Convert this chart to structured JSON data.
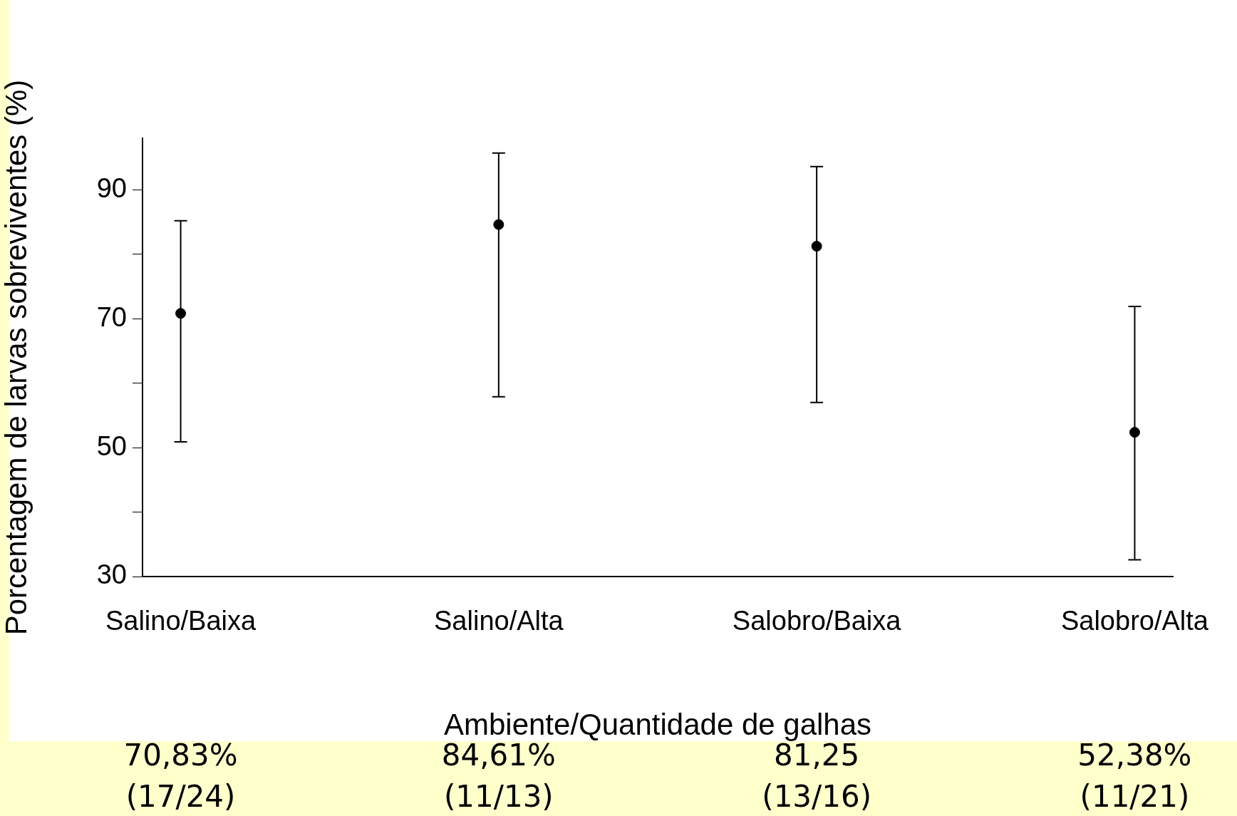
{
  "chart_data": {
    "type": "scatter",
    "xlabel": "Ambiente/Quantidade de galhas",
    "ylabel": "Porcentagem de larvas sobreviventes (%)",
    "categories": [
      "Salino/Baixa",
      "Salino/Alta",
      "Salobro/Baixa",
      "Salobro/Alta"
    ],
    "values": [
      70.83,
      84.61,
      81.25,
      52.38
    ],
    "errors": [
      [
        50.9,
        85.2
      ],
      [
        57.9,
        95.7
      ],
      [
        57.0,
        93.6
      ],
      [
        32.6,
        71.9
      ]
    ],
    "value_labels": [
      "70,83%\n(17/24)",
      "84,61%\n(11/13)",
      "81,25\n(13/16)",
      "52,38%\n(11/21)"
    ],
    "color": "#000000",
    "marker": "circle",
    "grid": false,
    "legend": false,
    "ylim": [
      30,
      98
    ],
    "yticks": [
      30,
      {
        "value": 40,
        "label": null
      },
      50,
      {
        "value": 60,
        "label": null
      },
      70,
      {
        "value": 80,
        "label": null
      },
      90
    ]
  }
}
